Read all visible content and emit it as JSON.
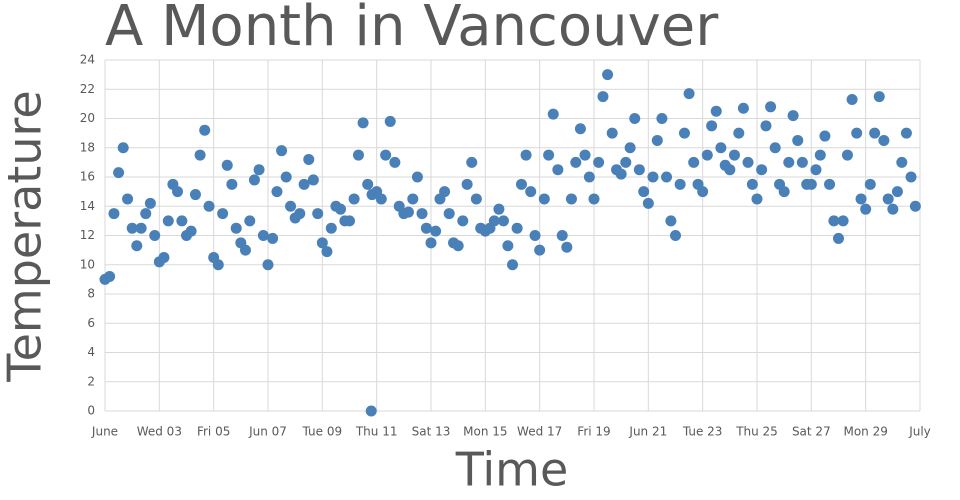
{
  "chart_data": {
    "type": "scatter",
    "title": "A Month in Vancouver",
    "x_label": "Time",
    "y_label": "Temperature",
    "color": "#4a80b8",
    "grid": true,
    "xlim": [
      1,
      31
    ],
    "ylim": [
      0,
      24
    ],
    "xticks": [
      {
        "value": 1,
        "label": "June"
      },
      {
        "value": 3,
        "label": "Wed 03"
      },
      {
        "value": 5,
        "label": "Fri 05"
      },
      {
        "value": 7,
        "label": "Jun 07"
      },
      {
        "value": 9,
        "label": "Tue 09"
      },
      {
        "value": 11,
        "label": "Thu 11"
      },
      {
        "value": 13,
        "label": "Sat 13"
      },
      {
        "value": 15,
        "label": "Mon 15"
      },
      {
        "value": 17,
        "label": "Wed 17"
      },
      {
        "value": 19,
        "label": "Fri 19"
      },
      {
        "value": 21,
        "label": "Jun 21"
      },
      {
        "value": 23,
        "label": "Tue 23"
      },
      {
        "value": 25,
        "label": "Thu 25"
      },
      {
        "value": 27,
        "label": "Sat 27"
      },
      {
        "value": 29,
        "label": "Mon 29"
      },
      {
        "value": 31,
        "label": "July"
      }
    ],
    "yticks": [
      0,
      2,
      4,
      6,
      8,
      10,
      12,
      14,
      16,
      18,
      20,
      22,
      24
    ],
    "x": [
      1,
      1.17,
      1.33,
      1.5,
      1.67,
      1.83,
      2,
      2.17,
      2.33,
      2.5,
      2.67,
      2.83,
      3,
      3.17,
      3.33,
      3.5,
      3.67,
      3.83,
      4,
      4.17,
      4.33,
      4.5,
      4.67,
      4.83,
      5,
      5.17,
      5.33,
      5.5,
      5.67,
      5.83,
      6,
      6.17,
      6.33,
      6.5,
      6.67,
      6.83,
      7,
      7.17,
      7.33,
      7.5,
      7.67,
      7.83,
      8,
      8.17,
      8.33,
      8.5,
      8.67,
      8.83,
      9,
      9.17,
      9.33,
      9.5,
      9.67,
      9.83,
      10,
      10.17,
      10.33,
      10.5,
      10.67,
      10.8,
      10.83,
      11,
      11.17,
      11.33,
      11.5,
      11.67,
      11.83,
      12,
      12.17,
      12.33,
      12.5,
      12.67,
      12.83,
      13,
      13.17,
      13.33,
      13.5,
      13.67,
      13.83,
      14,
      14.17,
      14.33,
      14.5,
      14.67,
      14.83,
      15,
      15.17,
      15.33,
      15.5,
      15.67,
      15.83,
      16,
      16.17,
      16.33,
      16.5,
      16.67,
      16.83,
      17,
      17.17,
      17.33,
      17.5,
      17.67,
      17.83,
      18,
      18.17,
      18.33,
      18.5,
      18.67,
      18.83,
      19,
      19.17,
      19.33,
      19.5,
      19.67,
      19.83,
      20,
      20.17,
      20.33,
      20.5,
      20.67,
      20.83,
      21,
      21.17,
      21.33,
      21.5,
      21.67,
      21.83,
      22,
      22.17,
      22.33,
      22.5,
      22.67,
      22.83,
      23,
      23.17,
      23.33,
      23.5,
      23.67,
      23.83,
      24,
      24.17,
      24.33,
      24.5,
      24.67,
      24.83,
      25,
      25.17,
      25.33,
      25.5,
      25.67,
      25.83,
      26,
      26.17,
      26.33,
      26.5,
      26.67,
      26.83,
      27,
      27.17,
      27.33,
      27.5,
      27.67,
      27.83,
      28,
      28.17,
      28.33,
      28.5,
      28.67,
      28.83,
      29,
      29.17,
      29.33,
      29.5,
      29.67,
      29.83,
      30,
      30.17,
      30.33,
      30.5,
      30.67,
      30.83
    ],
    "values": [
      9.0,
      9.2,
      13.5,
      16.3,
      18.0,
      14.5,
      12.5,
      11.3,
      12.5,
      13.5,
      14.2,
      12.0,
      10.2,
      10.5,
      13.0,
      15.5,
      15.0,
      13.0,
      12.0,
      12.3,
      14.8,
      17.5,
      19.2,
      14.0,
      10.5,
      10.0,
      13.5,
      16.8,
      15.5,
      12.5,
      11.5,
      11.0,
      13.0,
      15.8,
      16.5,
      12.0,
      10.0,
      11.8,
      15.0,
      17.8,
      16.0,
      14.0,
      13.2,
      13.5,
      15.5,
      17.2,
      15.8,
      13.5,
      11.5,
      10.9,
      12.5,
      14.0,
      13.8,
      13.0,
      13.0,
      14.5,
      17.5,
      19.7,
      15.5,
      0,
      14.8,
      15.0,
      14.5,
      17.5,
      19.8,
      17.0,
      14.0,
      13.5,
      13.6,
      14.5,
      16.0,
      13.5,
      12.5,
      11.5,
      12.3,
      14.5,
      15.0,
      13.5,
      11.5,
      11.3,
      13.0,
      15.5,
      17.0,
      14.5,
      12.5,
      12.3,
      12.5,
      13.0,
      13.8,
      13.0,
      11.3,
      10.0,
      12.5,
      15.5,
      17.5,
      15.0,
      12.0,
      11.0,
      14.5,
      17.5,
      20.3,
      16.5,
      12.0,
      11.2,
      14.5,
      17.0,
      19.3,
      17.5,
      16.0,
      14.5,
      17.0,
      21.5,
      23.0,
      19.0,
      16.5,
      16.2,
      17.0,
      18.0,
      20.0,
      16.5,
      15.0,
      14.2,
      16.0,
      18.5,
      20.0,
      16.0,
      13.0,
      12.0,
      15.5,
      19.0,
      21.7,
      17.0,
      15.5,
      15.0,
      17.5,
      19.5,
      20.5,
      18.0,
      16.8,
      16.5,
      17.5,
      19.0,
      20.7,
      17.0,
      15.5,
      14.5,
      16.5,
      19.5,
      20.8,
      18.0,
      15.5,
      15.0,
      17.0,
      20.2,
      18.5,
      17.0,
      15.5,
      15.5,
      16.5,
      17.5,
      18.8,
      15.5,
      13.0,
      11.8,
      13.0,
      17.5,
      21.3,
      19.0,
      14.5,
      13.8,
      15.5,
      19.0,
      21.5,
      18.5,
      14.5,
      13.8,
      15.0,
      17.0,
      19.0,
      16.0,
      14.0
    ]
  }
}
